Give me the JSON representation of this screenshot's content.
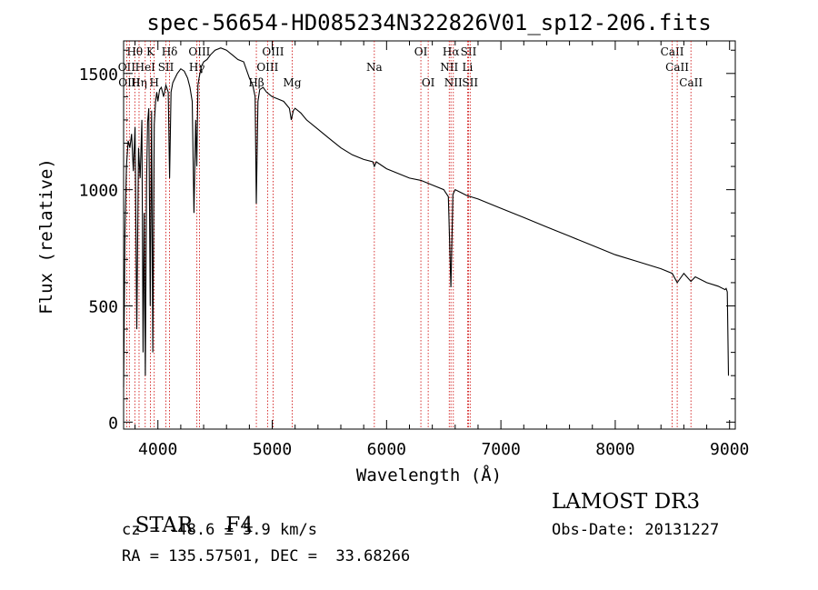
{
  "chart_data": {
    "type": "line",
    "title": "spec-56654-HD085234N322826V01_sp12-206.fits",
    "xlabel": "Wavelength (Å)",
    "ylabel": "Flux (relative)",
    "xlim": [
      3700,
      9050
    ],
    "ylim": [
      -30,
      1640
    ],
    "xticks": [
      4000,
      5000,
      6000,
      7000,
      8000,
      9000
    ],
    "yticks": [
      0,
      500,
      1000,
      1500
    ],
    "grid": false,
    "series": [
      {
        "name": "flux",
        "x": [
          3700,
          3712,
          3725,
          3740,
          3755,
          3770,
          3785,
          3800,
          3815,
          3830,
          3845,
          3860,
          3870,
          3880,
          3890,
          3900,
          3910,
          3920,
          3933,
          3945,
          3955,
          3968,
          3980,
          3990,
          4000,
          4015,
          4030,
          4050,
          4070,
          4090,
          4102,
          4115,
          4130,
          4150,
          4170,
          4200,
          4230,
          4260,
          4280,
          4300,
          4315,
          4330,
          4340,
          4350,
          4360,
          4380,
          4400,
          4430,
          4460,
          4500,
          4550,
          4600,
          4650,
          4700,
          4750,
          4800,
          4830,
          4850,
          4861,
          4875,
          4890,
          4920,
          4950,
          5000,
          5050,
          5100,
          5150,
          5167,
          5184,
          5200,
          5250,
          5300,
          5400,
          5500,
          5600,
          5700,
          5800,
          5880,
          5893,
          5910,
          6000,
          6100,
          6200,
          6300,
          6400,
          6500,
          6540,
          6563,
          6580,
          6600,
          6700,
          6800,
          6900,
          7000,
          7200,
          7400,
          7600,
          7800,
          8000,
          8200,
          8400,
          8498,
          8542,
          8600,
          8662,
          8700,
          8800,
          8900,
          8960,
          8970,
          8980,
          8990
        ],
        "y": [
          150,
          820,
          1100,
          1210,
          1180,
          1240,
          1080,
          1270,
          400,
          1180,
          1050,
          1300,
          300,
          900,
          200,
          1020,
          1290,
          1350,
          500,
          1340,
          300,
          1280,
          1380,
          1420,
          1380,
          1430,
          1440,
          1400,
          1450,
          1420,
          1050,
          1420,
          1460,
          1480,
          1500,
          1520,
          1510,
          1480,
          1440,
          1380,
          900,
          1300,
          1100,
          1450,
          1480,
          1530,
          1550,
          1560,
          1580,
          1600,
          1610,
          1600,
          1580,
          1560,
          1550,
          1480,
          1450,
          1400,
          940,
          1380,
          1430,
          1440,
          1420,
          1400,
          1390,
          1380,
          1350,
          1300,
          1340,
          1350,
          1330,
          1300,
          1260,
          1220,
          1180,
          1150,
          1130,
          1120,
          1100,
          1120,
          1090,
          1070,
          1050,
          1040,
          1020,
          1000,
          970,
          580,
          980,
          1000,
          975,
          960,
          940,
          920,
          880,
          840,
          800,
          760,
          720,
          690,
          660,
          640,
          600,
          640,
          605,
          625,
          600,
          585,
          570,
          575,
          560,
          200
        ]
      }
    ],
    "line_marks": [
      {
        "name": "Hθ",
        "wl": 3798,
        "row": 0
      },
      {
        "name": "OII",
        "wl": 3727,
        "row": 1
      },
      {
        "name": "OIII",
        "wl": 3750,
        "row": 2
      },
      {
        "name": "Hη",
        "wl": 3835,
        "row": 2
      },
      {
        "name": "HeI",
        "wl": 3889,
        "row": 1
      },
      {
        "name": "K",
        "wl": 3934,
        "row": 0
      },
      {
        "name": "H",
        "wl": 3968,
        "row": 2
      },
      {
        "name": "Hδ",
        "wl": 4102,
        "row": 0
      },
      {
        "name": "SII",
        "wl": 4070,
        "row": 1
      },
      {
        "name": "OIII",
        "wl": 4363,
        "row": 0
      },
      {
        "name": "Hγ",
        "wl": 4341,
        "row": 1
      },
      {
        "name": "Hβ",
        "wl": 4861,
        "row": 2
      },
      {
        "name": "OIII",
        "wl": 4959,
        "row": 1
      },
      {
        "name": "OIII",
        "wl": 5007,
        "row": 0
      },
      {
        "name": "Mg",
        "wl": 5175,
        "row": 2
      },
      {
        "name": "Na",
        "wl": 5893,
        "row": 1
      },
      {
        "name": "OI",
        "wl": 6300,
        "row": 0
      },
      {
        "name": "OI",
        "wl": 6364,
        "row": 2
      },
      {
        "name": "NII",
        "wl": 6548,
        "row": 1
      },
      {
        "name": "Hα",
        "wl": 6563,
        "row": 0
      },
      {
        "name": "NII",
        "wl": 6584,
        "row": 2
      },
      {
        "name": "SII",
        "wl": 6717,
        "row": 0
      },
      {
        "name": "Li",
        "wl": 6708,
        "row": 1
      },
      {
        "name": "SII",
        "wl": 6731,
        "row": 2
      },
      {
        "name": "CaII",
        "wl": 8498,
        "row": 0
      },
      {
        "name": "CaII",
        "wl": 8542,
        "row": 1
      },
      {
        "name": "CaII",
        "wl": 8662,
        "row": 2
      }
    ]
  },
  "info": {
    "class": "STAR",
    "subclass": "F4",
    "survey": "LAMOST DR3",
    "cz": "cz = -48.6 ± 5.9 km/s",
    "obs_date": "Obs-Date: 20131227",
    "coords": "RA = 135.57501, DEC =  33.68266"
  }
}
